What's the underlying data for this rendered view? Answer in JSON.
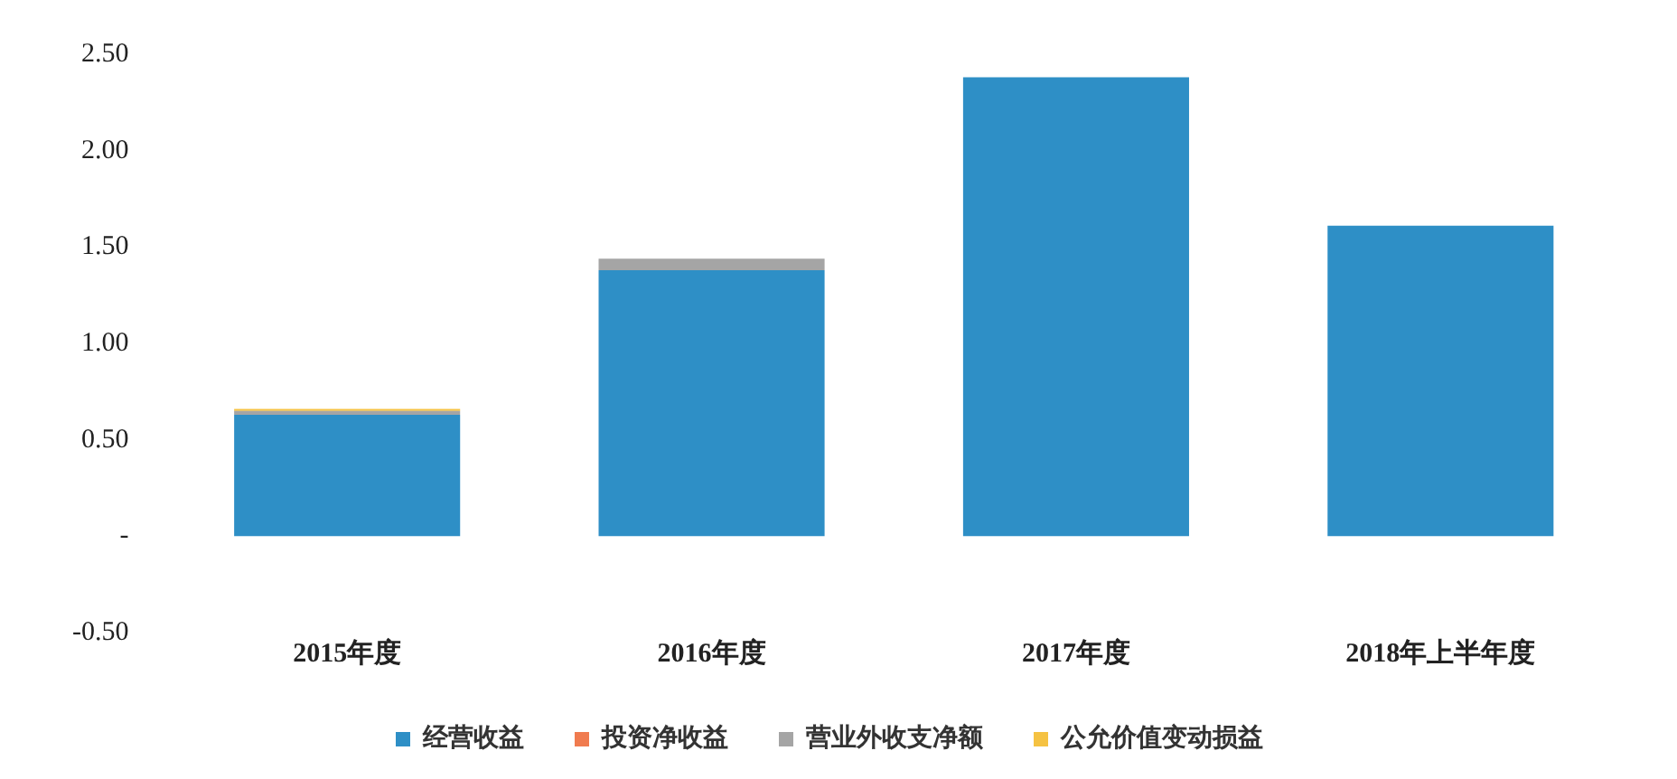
{
  "chart_data": {
    "type": "bar",
    "stacked": true,
    "categories": [
      "2015年度",
      "2016年度",
      "2017年度",
      "2018年上半年度"
    ],
    "series": [
      {
        "name": "经营收益",
        "color": "#2e8fc6",
        "values": [
          0.63,
          1.38,
          2.38,
          1.61
        ]
      },
      {
        "name": "投资净收益",
        "color": "#f07b4f",
        "values": [
          0,
          0,
          0,
          0
        ]
      },
      {
        "name": "营业外收支净额",
        "color": "#a5a5a5",
        "values": [
          0.02,
          0.06,
          0,
          0
        ]
      },
      {
        "name": "公允价值变动损益",
        "color": "#f5c242",
        "values": [
          0.01,
          0,
          0,
          0
        ]
      }
    ],
    "ylim": [
      -0.5,
      2.5
    ],
    "yticks": [
      {
        "value": -0.5,
        "label": "-0.50"
      },
      {
        "value": 0,
        "label": "-"
      },
      {
        "value": 0.5,
        "label": "0.50"
      },
      {
        "value": 1,
        "label": "1.00"
      },
      {
        "value": 1.5,
        "label": "1.50"
      },
      {
        "value": 2,
        "label": "2.00"
      },
      {
        "value": 2.5,
        "label": "2.50"
      }
    ],
    "grid": false,
    "legend": "bottom"
  }
}
